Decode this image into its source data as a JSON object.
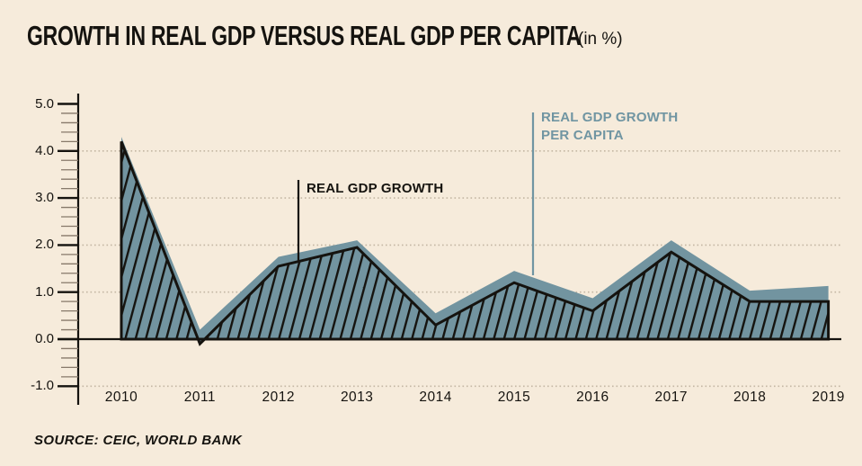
{
  "title": {
    "text": "GROWTH IN REAL GDP VERSUS REAL GDP PER CAPITA",
    "suffix": "(in %)"
  },
  "annotations": {
    "gdp_label": "REAL GDP GROWTH",
    "per_capita_label_line1": "REAL GDP GROWTH",
    "per_capita_label_line2": "PER CAPITA"
  },
  "source": "SOURCE: CEIC, WORLD BANK",
  "colors": {
    "background": "#f6ebdb",
    "area_teal": "#7294a0",
    "teal_label": "#7095a2",
    "ink": "#15130f",
    "gridline": "#c4b7a4",
    "minor_tick": "#87796a"
  },
  "chart_data": {
    "type": "area",
    "title": "GROWTH IN REAL GDP VERSUS REAL GDP PER CAPITA (in %)",
    "categories": [
      2010,
      2011,
      2012,
      2013,
      2014,
      2015,
      2016,
      2017,
      2018,
      2019
    ],
    "series": [
      {
        "name": "REAL GDP GROWTH",
        "style": "teal-fill-with-black-diagonal-hatching",
        "values": [
          4.2,
          -0.1,
          1.55,
          1.95,
          0.3,
          1.2,
          0.6,
          1.85,
          0.8,
          0.8
        ]
      },
      {
        "name": "REAL GDP GROWTH PER CAPITA",
        "style": "solid-teal",
        "values": [
          4.3,
          0.2,
          1.75,
          2.1,
          0.55,
          1.45,
          0.87,
          2.1,
          1.03,
          1.13
        ]
      }
    ],
    "xlabel": "",
    "ylabel": "",
    "ylim": [
      -1.0,
      5.0
    ],
    "y_major_ticks": [
      5.0,
      4.0,
      3.0,
      2.0,
      1.0,
      0.0,
      -1.0
    ],
    "y_minor_tick_step": 0.2,
    "dotted_gridlines_at": [
      4.0,
      3.0,
      2.0,
      1.0,
      -1.0
    ],
    "baseline": 0.0,
    "grid": "dotted-horizontal",
    "legend_position": "inline-annotations"
  }
}
